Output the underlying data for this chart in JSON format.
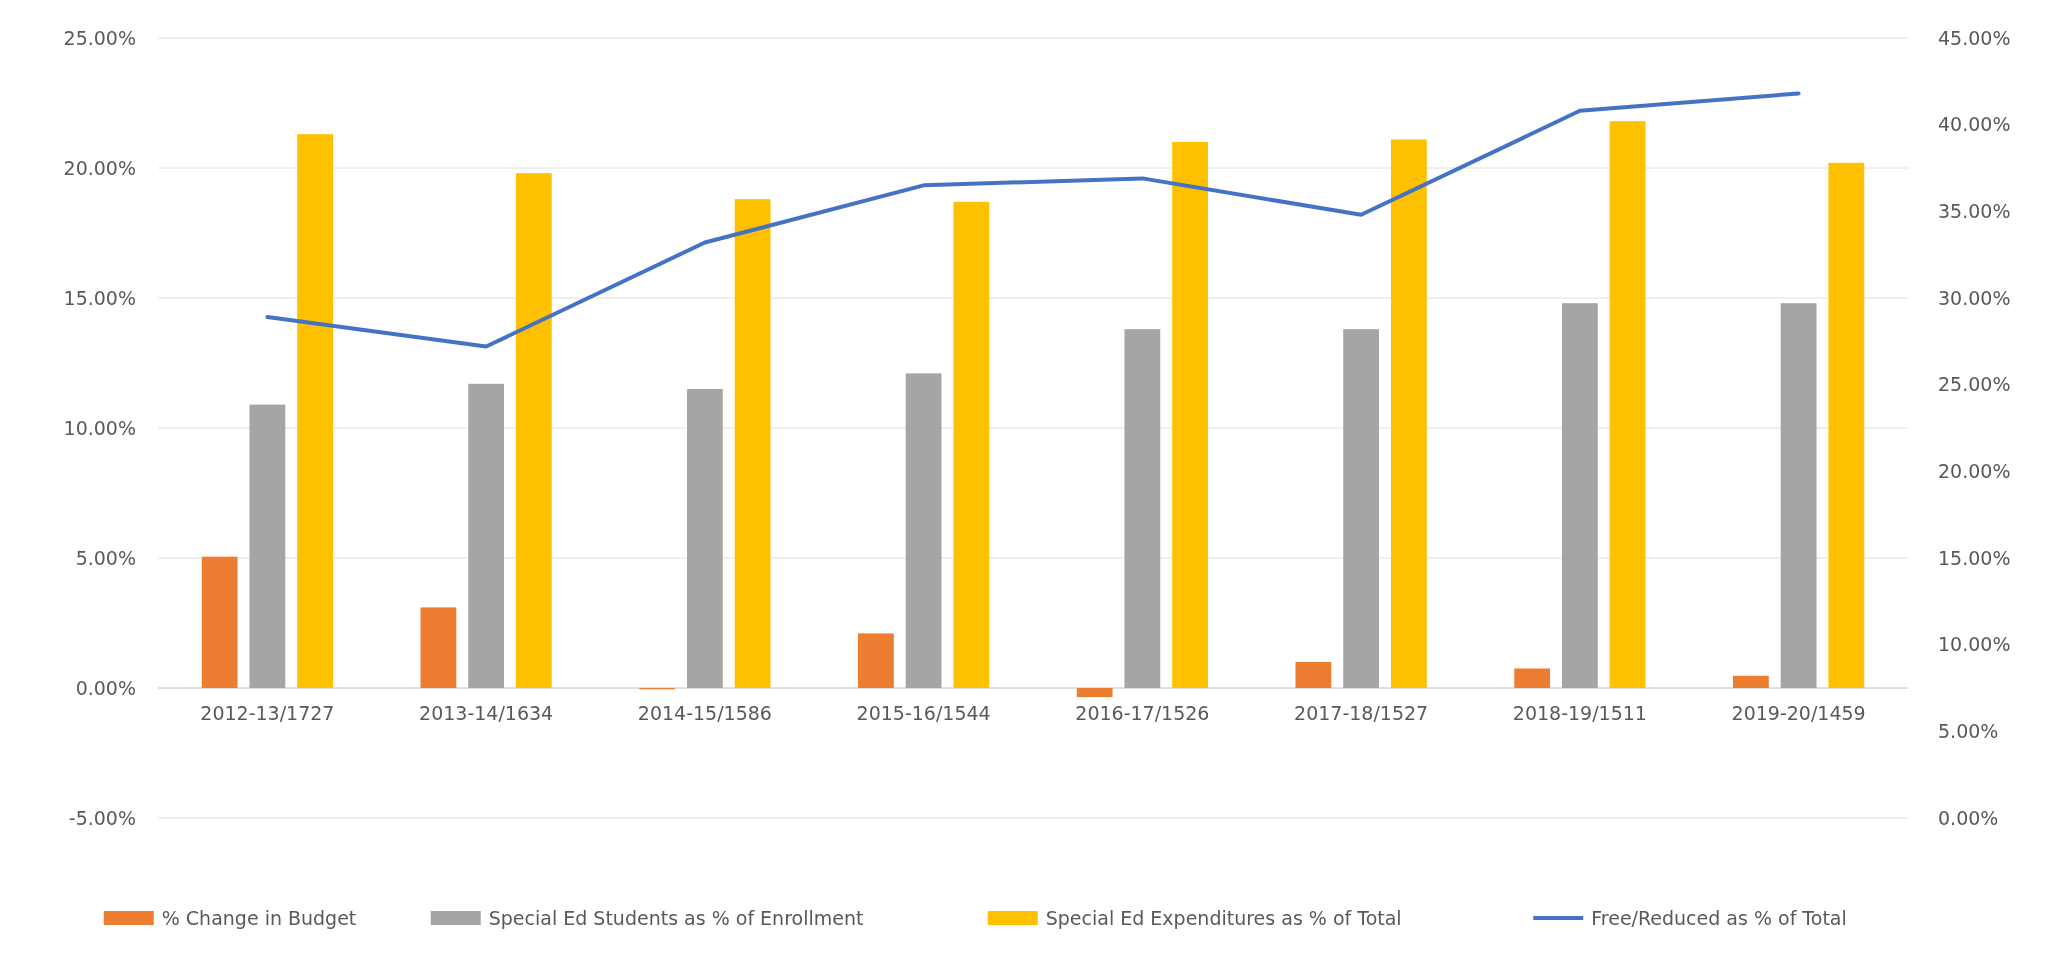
{
  "chart_data": {
    "type": "bar",
    "categories": [
      "2012-13/1727",
      "2013-14/1634",
      "2014-15/1586",
      "2015-16/1544",
      "2016-17/1526",
      "2017-18/1527",
      "2018-19/1511",
      "2019-20/1459"
    ],
    "series": [
      {
        "name": "% Change in Budget",
        "color": "#ed7d31",
        "values": [
          5.05,
          3.1,
          -0.05,
          2.1,
          -0.35,
          1.0,
          0.75,
          0.47
        ]
      },
      {
        "name": "Special Ed Students as % of Enrollment",
        "color": "#a5a5a5",
        "values": [
          10.9,
          11.7,
          11.5,
          12.1,
          13.8,
          13.8,
          14.8,
          14.8
        ]
      },
      {
        "name": "Special Ed Expenditures as % of Total",
        "color": "#ffc000",
        "values": [
          21.3,
          19.8,
          18.8,
          18.7,
          21.0,
          21.1,
          21.8,
          20.2
        ]
      },
      {
        "name": "Free/Reduced as % of Total",
        "type": "line",
        "axis": "y2",
        "color": "#4472c4",
        "values": [
          28.9,
          27.2,
          33.2,
          36.5,
          36.9,
          34.8,
          40.8,
          41.8
        ]
      }
    ],
    "ylim": [
      -5,
      25
    ],
    "yticks": [
      {
        "value": -5,
        "label": "-5.00%"
      },
      {
        "value": 0,
        "label": "0.00%"
      },
      {
        "value": 5,
        "label": "5.00%"
      },
      {
        "value": 10,
        "label": "10.00%"
      },
      {
        "value": 15,
        "label": "15.00%"
      },
      {
        "value": 20,
        "label": "20.00%"
      },
      {
        "value": 25,
        "label": "25.00%"
      }
    ],
    "y2lim": [
      0,
      45
    ],
    "y2ticks": [
      {
        "value": 0,
        "label": "0.00%"
      },
      {
        "value": 5,
        "label": "5.00%"
      },
      {
        "value": 10,
        "label": "10.00%"
      },
      {
        "value": 15,
        "label": "15.00%"
      },
      {
        "value": 20,
        "label": "20.00%"
      },
      {
        "value": 25,
        "label": "25.00%"
      },
      {
        "value": 30,
        "label": "30.00%"
      },
      {
        "value": 35,
        "label": "35.00%"
      },
      {
        "value": 40,
        "label": "40.00%"
      },
      {
        "value": 45,
        "label": "45.00%"
      }
    ],
    "grid": "y",
    "legend": "bottom"
  }
}
